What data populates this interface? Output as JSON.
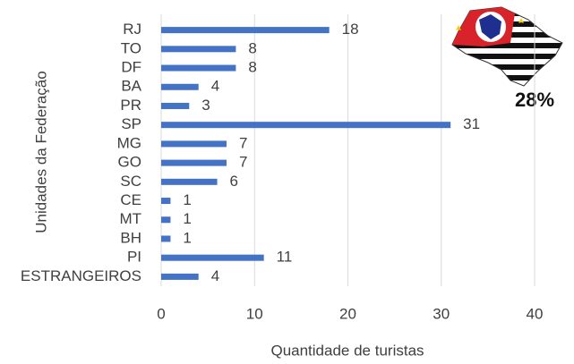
{
  "chart_data": {
    "type": "barh",
    "categories": [
      "RJ",
      "TO",
      "DF",
      "BA",
      "PR",
      "SP",
      "MG",
      "GO",
      "SC",
      "CE",
      "MT",
      "BH",
      "PI",
      "ESTRANGEIROS"
    ],
    "values": [
      18,
      8,
      8,
      4,
      3,
      31,
      7,
      7,
      6,
      1,
      1,
      1,
      11,
      4
    ],
    "color": "#4472c4",
    "xlim": [
      0,
      40
    ],
    "xticks": [
      0,
      10,
      20,
      30,
      40
    ],
    "grid": true,
    "xlabel": "Quantidade de turistas",
    "ylabel": "Unidades da Federação",
    "annotation": "28%"
  }
}
